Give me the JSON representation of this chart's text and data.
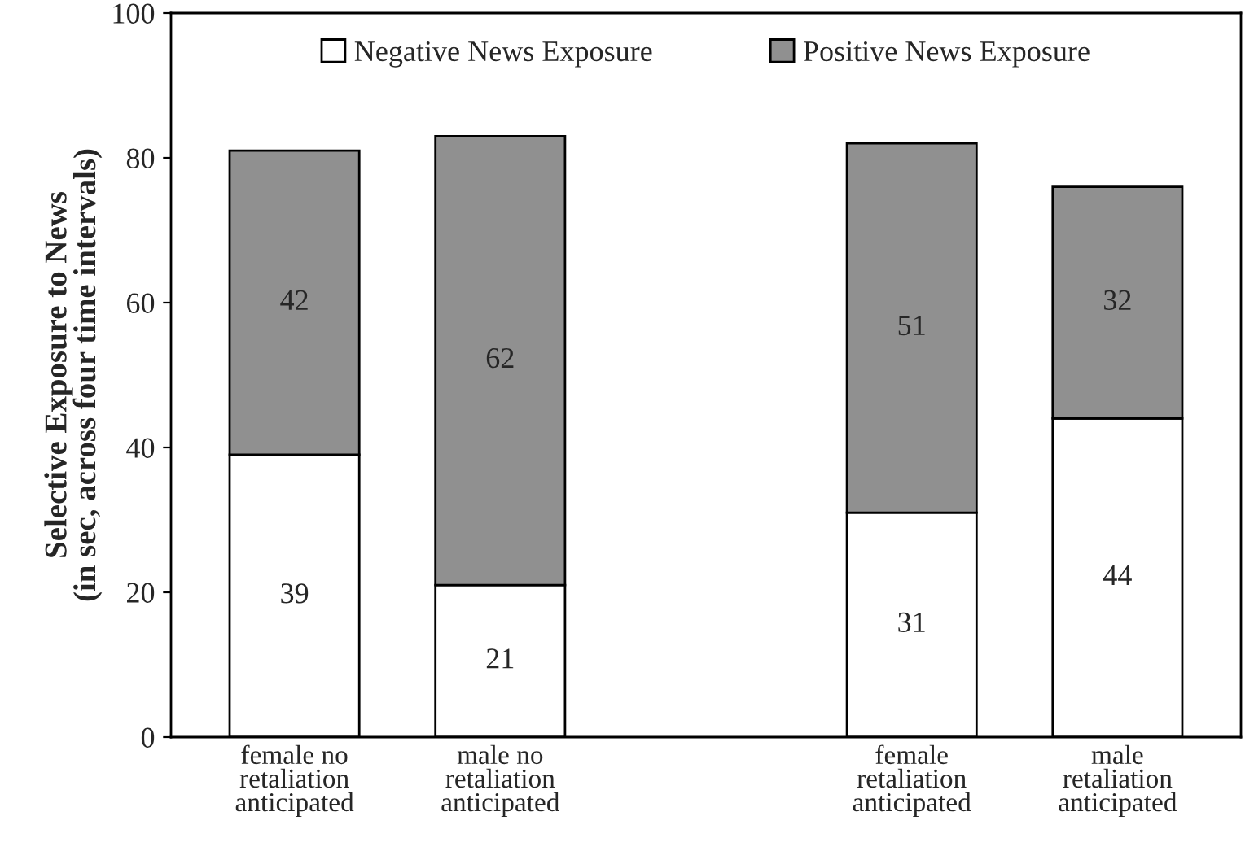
{
  "chart_data": {
    "type": "bar",
    "stacked": true,
    "ylabel": "Selective Exposure to News\n(in sec, across four time intervals)",
    "categories": [
      "female no\nretaliation\nanticipated",
      "male no\nretaliation\nanticipated",
      null,
      "female\nretaliation\nanticipated",
      "male\nretaliation\nanticipated"
    ],
    "series": [
      {
        "name": "Negative News Exposure",
        "color": "#ffffff",
        "values": [
          39,
          21,
          null,
          31,
          44
        ]
      },
      {
        "name": "Positive News Exposure",
        "color": "#909090",
        "values": [
          42,
          62,
          null,
          51,
          32
        ]
      }
    ],
    "ylim": [
      0,
      100
    ],
    "yticks": [
      0,
      20,
      40,
      60,
      80,
      100
    ],
    "data_labels": true,
    "legend": "top",
    "grid": false
  }
}
